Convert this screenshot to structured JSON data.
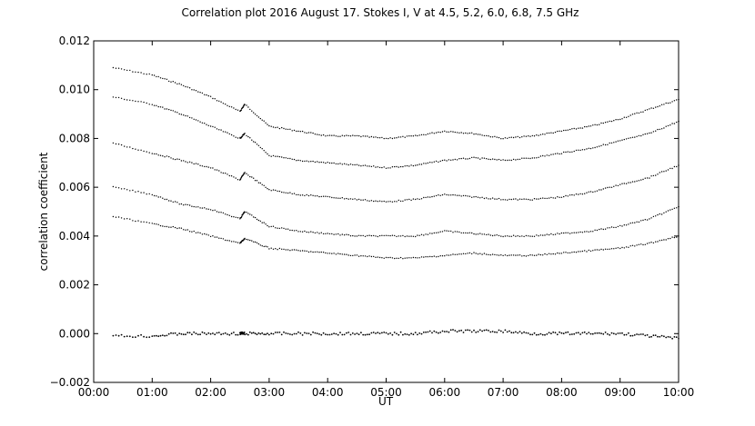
{
  "chart_data": {
    "type": "scatter",
    "title": "Correlation plot 2016 August 17. Stokes I, V at 4.5, 5.2, 6.0, 6.8, 7.5 GHz",
    "xlabel": "UT",
    "ylabel": "correlation coefficient",
    "xlim": [
      "00:00",
      "10:00"
    ],
    "ylim": [
      -0.002,
      0.012
    ],
    "x_ticks": [
      "00:00",
      "01:00",
      "02:00",
      "03:00",
      "04:00",
      "05:00",
      "06:00",
      "07:00",
      "08:00",
      "09:00",
      "10:00"
    ],
    "y_ticks": [
      "−0.002",
      "0.000",
      "0.002",
      "0.004",
      "0.006",
      "0.008",
      "0.010",
      "0.012"
    ],
    "grid": false,
    "legend": "none",
    "marker_color": "#000000",
    "x": [
      "00:20",
      "01:00",
      "01:30",
      "02:00",
      "02:30",
      "02:35",
      "03:00",
      "03:30",
      "04:00",
      "04:30",
      "05:00",
      "05:30",
      "06:00",
      "06:30",
      "07:00",
      "07:30",
      "08:00",
      "08:30",
      "09:00",
      "09:30",
      "10:00"
    ],
    "series": [
      {
        "values": [
          0.0109,
          0.0106,
          0.0102,
          0.0097,
          0.0091,
          0.0094,
          0.0085,
          0.0083,
          0.0081,
          0.0081,
          0.008,
          0.0081,
          0.0083,
          0.0082,
          0.008,
          0.0081,
          0.0083,
          0.0085,
          0.0088,
          0.0092,
          0.0096
        ]
      },
      {
        "values": [
          0.0097,
          0.0094,
          0.009,
          0.0085,
          0.008,
          0.0082,
          0.0073,
          0.0071,
          0.007,
          0.0069,
          0.0068,
          0.0069,
          0.0071,
          0.0072,
          0.0071,
          0.0072,
          0.0074,
          0.0076,
          0.0079,
          0.0082,
          0.0087
        ]
      },
      {
        "values": [
          0.0078,
          0.0074,
          0.0071,
          0.0068,
          0.0063,
          0.0066,
          0.0059,
          0.0057,
          0.0056,
          0.0055,
          0.0054,
          0.0055,
          0.0057,
          0.0056,
          0.0055,
          0.0055,
          0.0056,
          0.0058,
          0.0061,
          0.0064,
          0.0069
        ]
      },
      {
        "values": [
          0.006,
          0.0057,
          0.0053,
          0.0051,
          0.0047,
          0.005,
          0.0044,
          0.0042,
          0.0041,
          0.004,
          0.004,
          0.004,
          0.0042,
          0.0041,
          0.004,
          0.004,
          0.0041,
          0.0042,
          0.0044,
          0.0047,
          0.0052
        ]
      },
      {
        "values": [
          0.0048,
          0.0045,
          0.0043,
          0.004,
          0.0037,
          0.0039,
          0.0035,
          0.0034,
          0.0033,
          0.0032,
          0.0031,
          0.0031,
          0.0032,
          0.0033,
          0.0032,
          0.0032,
          0.0033,
          0.0034,
          0.0035,
          0.0037,
          0.004
        ]
      },
      {
        "values": [
          -0.0001,
          -0.0001,
          0.0,
          0.0,
          0.0,
          0.0,
          0.0,
          0.0,
          0.0,
          0.0,
          0.0,
          0.0,
          0.0001,
          0.0001,
          0.0001,
          0.0,
          0.0,
          0.0,
          0.0,
          -0.0001,
          -0.0002
        ]
      }
    ]
  }
}
